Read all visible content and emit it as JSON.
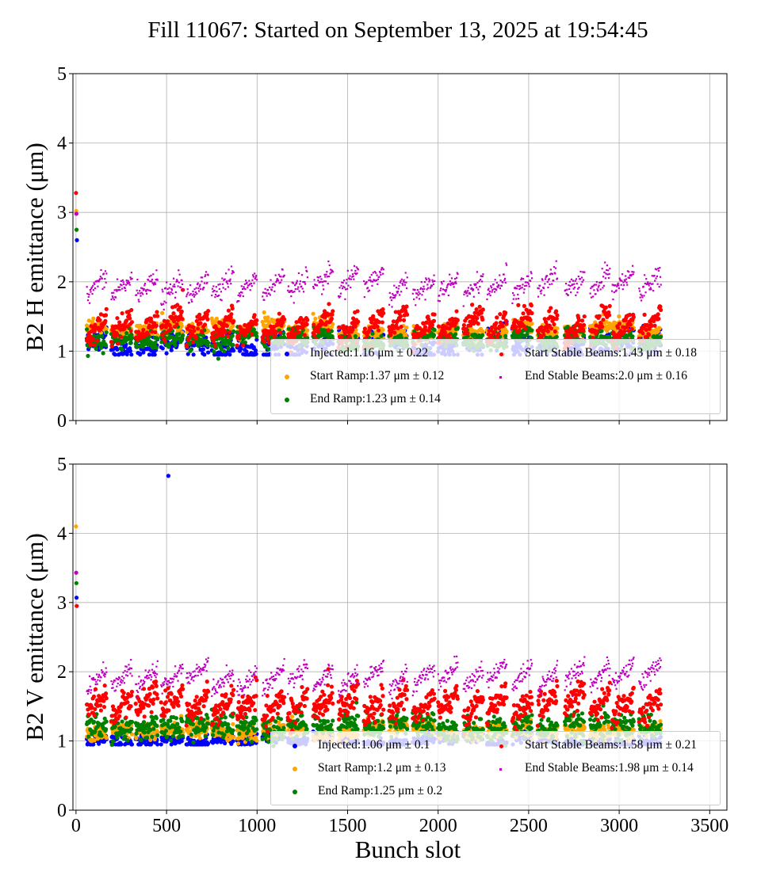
{
  "title": "Fill 11067: Started on September 13, 2025 at 19:54:45",
  "chart_data": [
    {
      "type": "scatter",
      "ylabel": "B2 H emittance (μm)",
      "xlabel": "",
      "xlim": [
        -17,
        3595
      ],
      "ylim": [
        0,
        5
      ],
      "xticks": [
        0,
        500,
        1000,
        1500,
        2000,
        2500,
        3000,
        3500
      ],
      "yticks": [
        0,
        1,
        2,
        3,
        4,
        5
      ],
      "grid": true,
      "legend_placement": "lower-right",
      "series": [
        {
          "name": "Injected",
          "label": "Injected:1.16 μm ± 0.22",
          "color": "#0000ff",
          "mean": 1.16,
          "std": 0.22
        },
        {
          "name": "Start Ramp",
          "label": "Start Ramp:1.37 μm ± 0.12",
          "color": "#ffa500",
          "mean": 1.37,
          "std": 0.12
        },
        {
          "name": "End Ramp",
          "label": "End Ramp:1.23 μm ± 0.14",
          "color": "#008000",
          "mean": 1.23,
          "std": 0.14
        },
        {
          "name": "Start Stable Beams",
          "label": "Start Stable Beams:1.43 μm ± 0.18",
          "color": "#ff0000",
          "mean": 1.43,
          "std": 0.18
        },
        {
          "name": "End Stable Beams",
          "label": "End Stable Beams:2.0 μm ± 0.16",
          "color": "#bf00bf",
          "mean": 2.0,
          "std": 0.16
        }
      ],
      "outliers": [
        [
          0,
          3.28
        ],
        [
          1,
          3.02
        ],
        [
          2,
          2.98
        ],
        [
          3,
          2.75
        ],
        [
          5,
          2.6
        ]
      ]
    },
    {
      "type": "scatter",
      "ylabel": "B2 V emittance (μm)",
      "xlabel": "Bunch slot",
      "xlim": [
        -17,
        3595
      ],
      "ylim": [
        0,
        5
      ],
      "xticks": [
        0,
        500,
        1000,
        1500,
        2000,
        2500,
        3000,
        3500
      ],
      "yticks": [
        0,
        1,
        2,
        3,
        4,
        5
      ],
      "grid": true,
      "legend_placement": "lower-right",
      "series": [
        {
          "name": "Injected",
          "label": "Injected:1.06 μm ± 0.1",
          "color": "#0000ff",
          "mean": 1.06,
          "std": 0.1
        },
        {
          "name": "Start Ramp",
          "label": "Start Ramp:1.2 μm ± 0.13",
          "color": "#ffa500",
          "mean": 1.2,
          "std": 0.13
        },
        {
          "name": "End Ramp",
          "label": "End Ramp:1.25 μm ± 0.2",
          "color": "#008000",
          "mean": 1.25,
          "std": 0.2
        },
        {
          "name": "Start Stable Beams",
          "label": "Start Stable Beams:1.58 μm ± 0.21",
          "color": "#ff0000",
          "mean": 1.58,
          "std": 0.21
        },
        {
          "name": "End Stable Beams",
          "label": "End Stable Beams:1.98 μm ± 0.14",
          "color": "#bf00bf",
          "mean": 1.98,
          "std": 0.14
        }
      ],
      "outliers": [
        [
          510,
          4.83
        ],
        [
          0,
          4.1
        ],
        [
          1,
          3.43
        ],
        [
          2,
          3.28
        ],
        [
          3,
          3.07
        ],
        [
          4,
          2.95
        ]
      ]
    }
  ],
  "trains": [
    [
      60,
      170
    ],
    [
      195,
      310
    ],
    [
      330,
      450
    ],
    [
      470,
      590
    ],
    [
      610,
      730
    ],
    [
      750,
      870
    ],
    [
      890,
      1000
    ],
    [
      1030,
      1150
    ],
    [
      1170,
      1280
    ],
    [
      1310,
      1420
    ],
    [
      1450,
      1560
    ],
    [
      1590,
      1700
    ],
    [
      1730,
      1830
    ],
    [
      1860,
      1980
    ],
    [
      2000,
      2110
    ],
    [
      2140,
      2250
    ],
    [
      2270,
      2380
    ],
    [
      2410,
      2520
    ],
    [
      2550,
      2660
    ],
    [
      2700,
      2810
    ],
    [
      2840,
      2950
    ],
    [
      2960,
      3080
    ],
    [
      3110,
      3230
    ]
  ]
}
